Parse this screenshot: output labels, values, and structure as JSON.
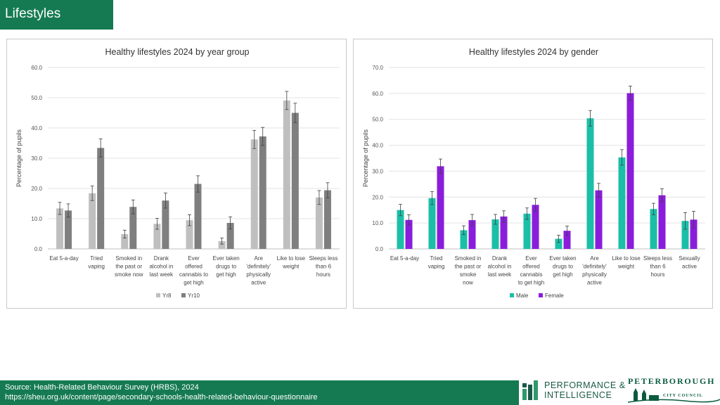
{
  "page": {
    "title": "Lifestyles",
    "source_line1": "Source: Health-Related Behaviour Survey (HRBS), 2024",
    "source_line2": "https://sheu.org.uk/content/page/secondary-schools-health-related-behaviour-questionnaire",
    "logo_pi_line1": "PERFORMANCE &",
    "logo_pi_line2": "INTELLIGENCE",
    "logo_pcc_name": "PETERBOROUGH",
    "logo_pcc_sub": "CITY COUNCIL"
  },
  "chart_data": [
    {
      "type": "bar",
      "title": "Healthy lifestyles 2024 by year group",
      "xlabel": "",
      "ylabel": "Percentage of pupils",
      "ylim": [
        0,
        60
      ],
      "ytick_step": 10,
      "ytick_labels": [
        "0.0",
        "10.0",
        "20.0",
        "30.0",
        "40.0",
        "50.0",
        "60.0"
      ],
      "grid": true,
      "legend": "bottom",
      "categories": [
        [
          "Eat 5-a-day"
        ],
        [
          "Tried",
          "vaping"
        ],
        [
          "Smoked in",
          "the past or",
          "smoke now"
        ],
        [
          "Drank",
          "alcohol in",
          "last week"
        ],
        [
          "Ever",
          "offered",
          "cannabis to",
          "get high"
        ],
        [
          "Ever taken",
          "drugs to",
          "get high"
        ],
        [
          "Are",
          "'definitely'",
          "physically",
          "active"
        ],
        [
          "Like to lose",
          "weight"
        ],
        [
          "Sleeps less",
          "than 6",
          "hours"
        ]
      ],
      "series": [
        {
          "name": "Yr8",
          "color": "#bfbfbf",
          "values": [
            13.4,
            18.4,
            4.9,
            8.3,
            9.5,
            2.6,
            36.2,
            49.1,
            17.0
          ],
          "err": [
            2.0,
            2.4,
            1.3,
            1.8,
            1.8,
            1.0,
            3.0,
            3.0,
            2.3
          ]
        },
        {
          "name": "Yr10",
          "color": "#7f7f7f",
          "values": [
            12.7,
            33.4,
            13.9,
            16.0,
            21.5,
            8.6,
            37.2,
            45.0,
            19.4
          ],
          "err": [
            2.2,
            3.0,
            2.3,
            2.5,
            2.7,
            2.0,
            3.0,
            3.2,
            2.5
          ]
        }
      ]
    },
    {
      "type": "bar",
      "title": "Healthy lifestyles 2024 by gender",
      "xlabel": "",
      "ylabel": "Percentage of pupils",
      "ylim": [
        0,
        70
      ],
      "ytick_step": 10,
      "ytick_labels": [
        "0.0",
        "10.0",
        "20.0",
        "30.0",
        "40.0",
        "50.0",
        "60.0",
        "70.0"
      ],
      "grid": true,
      "legend": "bottom",
      "categories": [
        [
          "Eat 5-a-day"
        ],
        [
          "Tried",
          "vaping"
        ],
        [
          "Smoked in",
          "the past or",
          "smoke",
          "now"
        ],
        [
          "Drank",
          "alcohol in",
          "last week"
        ],
        [
          "Ever",
          "offered",
          "cannabis",
          "to get high"
        ],
        [
          "Ever taken",
          "drugs to",
          "get high"
        ],
        [
          "Are",
          "'definitely'",
          "physically",
          "active"
        ],
        [
          "Like to lose",
          "weight"
        ],
        [
          "Sleeps less",
          "than 6",
          "hours"
        ],
        [
          "Sexually",
          "active"
        ]
      ],
      "series": [
        {
          "name": "Male",
          "color": "#1bbfa8",
          "values": [
            15.0,
            19.6,
            7.2,
            11.4,
            13.6,
            3.9,
            50.4,
            35.3,
            15.4,
            10.8
          ],
          "err": [
            2.2,
            2.5,
            1.7,
            1.9,
            2.2,
            1.4,
            3.0,
            3.0,
            2.2,
            3.2
          ]
        },
        {
          "name": "Female",
          "color": "#8a1ddb",
          "values": [
            11.2,
            31.9,
            11.1,
            12.5,
            17.0,
            7.0,
            22.6,
            60.1,
            20.7,
            11.3
          ],
          "err": [
            2.0,
            2.8,
            2.2,
            2.2,
            2.5,
            1.8,
            2.7,
            2.7,
            2.5,
            3.2
          ]
        }
      ]
    }
  ]
}
